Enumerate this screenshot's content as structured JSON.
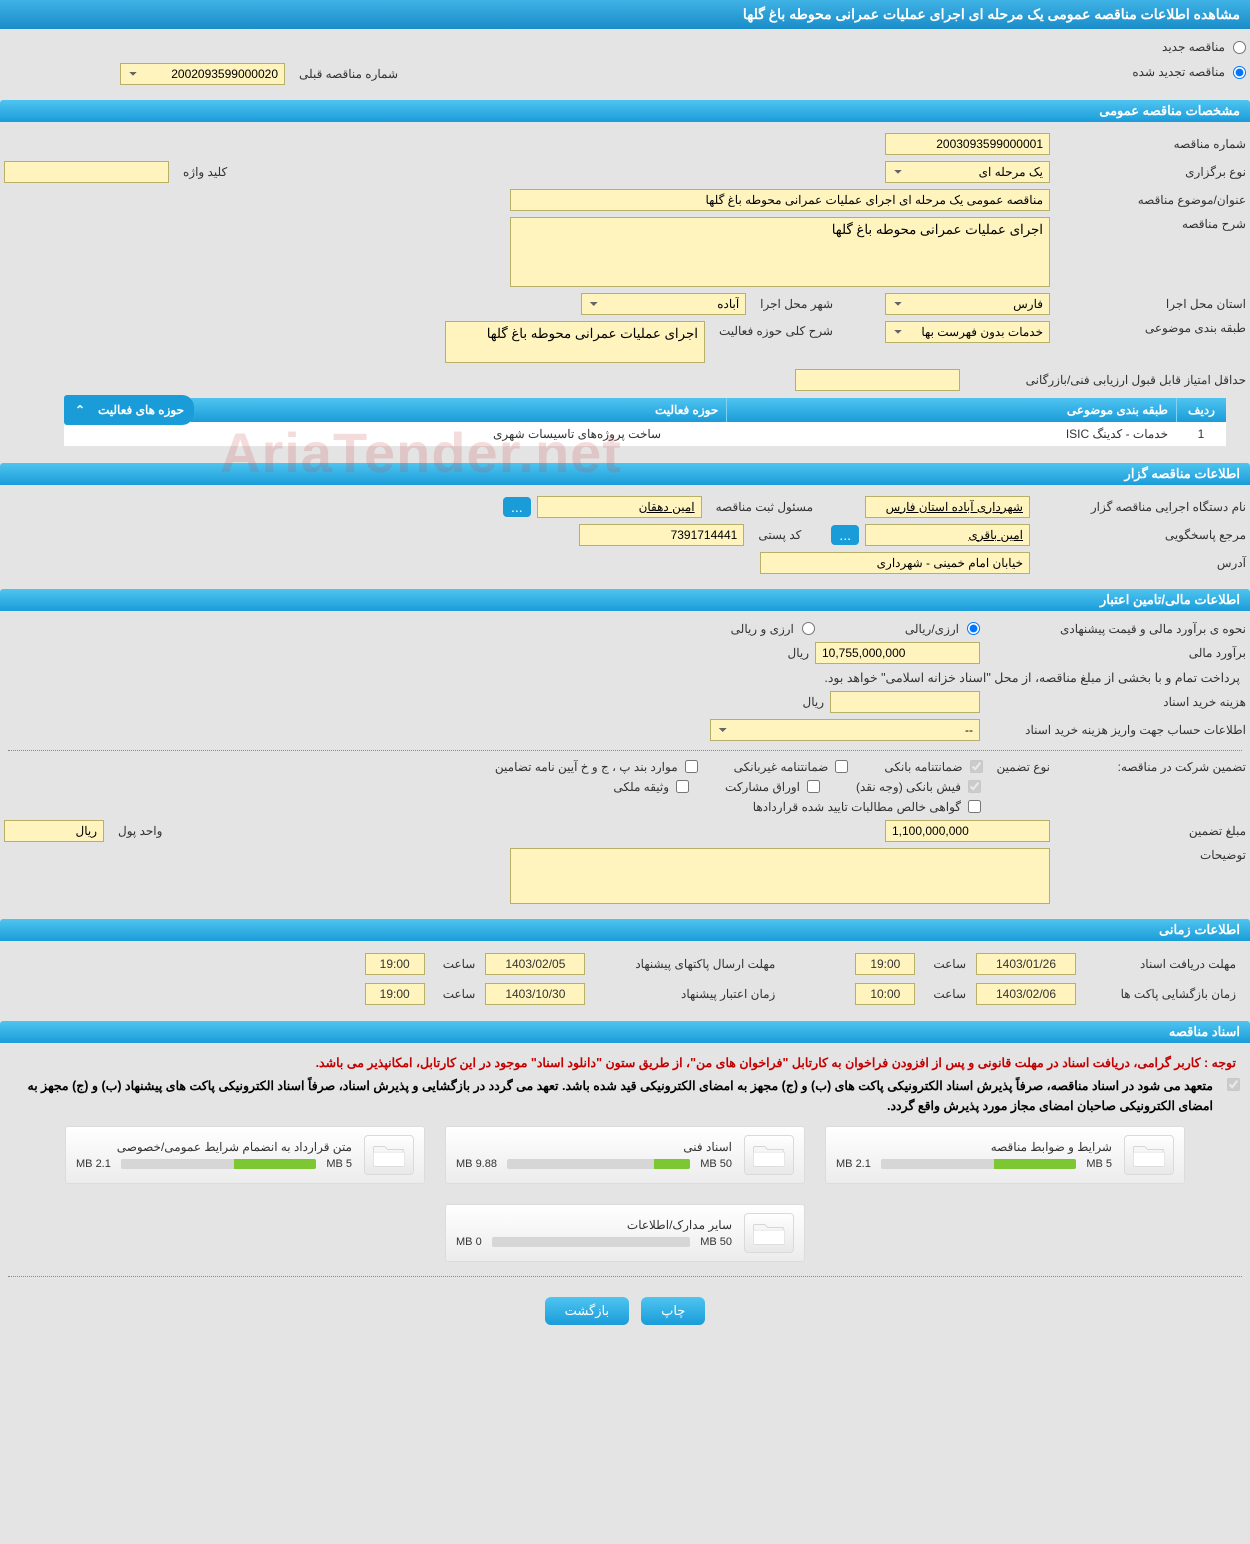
{
  "page_title": "مشاهده اطلاعات مناقصه عمومی یک مرحله ای اجرای عملیات عمرانی محوطه باغ گلها",
  "tender_type": {
    "new_label": "مناقصه جدید",
    "renewed_label": "مناقصه تجدید شده",
    "selected": "renewed"
  },
  "previous_number": {
    "label": "شماره مناقصه قبلی",
    "value": "2002093599000020"
  },
  "sections": {
    "general": {
      "title": "مشخصات مناقصه عمومی",
      "tender_number": {
        "label": "شماره مناقصه",
        "value": "2003093599000001"
      },
      "holding_type": {
        "label": "نوع برگزاری",
        "value": "یک مرحله ای"
      },
      "keyword": {
        "label": "کلید واژه",
        "value": ""
      },
      "subject": {
        "label": "عنوان/موضوع مناقصه",
        "value": "مناقصه عمومی یک مرحله ای اجرای عملیات عمرانی محوطه باغ گلها"
      },
      "description": {
        "label": "شرح مناقصه",
        "value": "اجرای عملیات عمرانی محوطه باغ گلها"
      },
      "province": {
        "label": "استان محل اجرا",
        "value": "فارس"
      },
      "city": {
        "label": "شهر محل اجرا",
        "value": "آباده"
      },
      "classification": {
        "label": "طبقه بندی موضوعی",
        "value": "خدمات بدون فهرست بها"
      },
      "scope_brief": {
        "label": "شرح کلی حوزه فعالیت",
        "value": "اجرای عملیات عمرانی محوطه باغ گلها"
      },
      "min_score": {
        "label": "حداقل امتیاز قابل قبول ارزیابی فنی/بازرگانی",
        "value": ""
      }
    },
    "activity": {
      "title": "حوزه های فعالیت",
      "columns": {
        "idx": "ردیف",
        "cat": "طبقه بندی موضوعی",
        "scope": "حوزه فعالیت"
      },
      "rows": [
        {
          "idx": "1",
          "cat": "خدمات - کدینگ ISIC",
          "scope": "ساخت پروژه‌های تاسیسات شهری"
        }
      ]
    },
    "owner": {
      "title": "اطلاعات مناقصه گزار",
      "agency": {
        "label": "نام دستگاه اجرایی مناقصه گزار",
        "value": "شهرداری آباده استان فارس"
      },
      "registrar": {
        "label": "مسئول ثبت مناقصه",
        "value": "امین دهقان"
      },
      "responder": {
        "label": "مرجع پاسخگویی",
        "value": "امین باقری"
      },
      "postal": {
        "label": "کد پستی",
        "value": "7391714441"
      },
      "address": {
        "label": "آدرس",
        "value": "خیابان امام خمینی - شهرداری"
      }
    },
    "finance": {
      "title": "اطلاعات مالی/تامین اعتبار",
      "pricing_method": {
        "label": "نحوه ی برآورد مالی و قیمت پیشنهادی",
        "opt1": "ارزی/ریالی",
        "opt2": "ارزی و ریالی",
        "selected": "opt1"
      },
      "estimate": {
        "label": "برآورد مالی",
        "value": "10,755,000,000",
        "unit": "ریال"
      },
      "payment_note": "پرداخت تمام و با بخشی از مبلغ مناقصه، از محل \"اسناد خزانه اسلامی\" خواهد بود.",
      "doc_fee": {
        "label": "هزینه خرید اسناد",
        "value": "",
        "unit": "ریال"
      },
      "account_info": {
        "label": "اطلاعات حساب جهت واریز هزینه خرید اسناد",
        "value": "--"
      }
    },
    "guarantee": {
      "label": "تضمین شرکت در مناقصه:",
      "type_label": "نوع تضمین",
      "opts": {
        "bank_guarantee": {
          "label": "ضمانتنامه بانکی",
          "checked": true
        },
        "nonbank_guarantee": {
          "label": "ضمانتنامه غیربانکی",
          "checked": false
        },
        "bylaw_items": {
          "label": "موارد بند پ ، ج و خ آیین نامه تضامین",
          "checked": false
        },
        "bank_receipt": {
          "label": "فیش بانکی (وجه نقد)",
          "checked": true
        },
        "securities": {
          "label": "اوراق مشارکت",
          "checked": false
        },
        "property_deed": {
          "label": "وثیقه ملکی",
          "checked": false
        },
        "contract_cert": {
          "label": "گواهی خالص مطالبات تایید شده قراردادها",
          "checked": false
        }
      },
      "amount": {
        "label": "مبلغ تضمین",
        "value": "1,100,000,000"
      },
      "currency": {
        "label": "واحد پول",
        "value": "ریال"
      },
      "notes": {
        "label": "توضیحات",
        "value": ""
      }
    },
    "timing": {
      "title": "اطلاعات زمانی",
      "receive_deadline": {
        "label": "مهلت دریافت اسناد",
        "date": "1403/01/26",
        "time": "19:00",
        "time_label": "ساعت"
      },
      "submit_deadline": {
        "label": "مهلت ارسال پاکتهای پیشنهاد",
        "date": "1403/02/05",
        "time": "19:00",
        "time_label": "ساعت"
      },
      "opening": {
        "label": "زمان بازگشایی پاکت ها",
        "date": "1403/02/06",
        "time": "10:00",
        "time_label": "ساعت"
      },
      "offer_validity": {
        "label": "زمان اعتبار پیشنهاد",
        "date": "1403/10/30",
        "time": "19:00",
        "time_label": "ساعت"
      }
    },
    "docs": {
      "title": "اسناد مناقصه",
      "warn_red": "توجه : کاربر گرامی، دریافت اسناد در مهلت قانونی و پس از افزودن فراخوان به کارتابل \"فراخوان های من\"، از طریق ستون \"دانلود اسناد\" موجود در این کارتابل، امکانپذیر می باشد.",
      "warn_black": "متعهد می شود در اسناد مناقصه، صرفاً پذیرش اسناد الکترونیکی پاکت های (ب) و (ج) مجهز به امضای الکترونیکی قید شده باشد. تعهد می گردد در بازگشایی و پذیرش اسناد، صرفاً اسناد الکترونیکی پاکت های پیشنهاد (ب) و (ج) مجهز به امضای الکترونیکی صاحبان امضای مجاز مورد پذیرش واقع گردد.",
      "warn_checkbox": true,
      "files": [
        {
          "title": "شرایط و ضوابط مناقصه",
          "used": "2.1 MB",
          "total": "5 MB",
          "percent": 42
        },
        {
          "title": "اسناد فنی",
          "used": "9.88 MB",
          "total": "50 MB",
          "percent": 20
        },
        {
          "title": "متن قرارداد به انضمام شرایط عمومی/خصوصی",
          "used": "2.1 MB",
          "total": "5 MB",
          "percent": 42
        },
        {
          "title": "سایر مدارک/اطلاعات",
          "used": "0 MB",
          "total": "50 MB",
          "percent": 0
        }
      ]
    }
  },
  "buttons": {
    "print": "چاپ",
    "back": "بازگشت",
    "more": "..."
  },
  "colors": {
    "header_grad_top": "#4fc4f0",
    "header_grad_bottom": "#1a9cd9",
    "input_bg": "#fff4be",
    "input_border": "#b8b068",
    "progress_fill": "#7dc733",
    "page_bg": "#e4e4e4"
  },
  "watermark": "AriaTender.net"
}
